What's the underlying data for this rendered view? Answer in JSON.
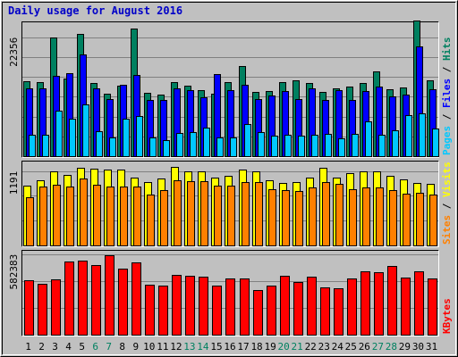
{
  "title": "Daily usage for August 2016",
  "chart_data": [
    {
      "type": "bar",
      "panel": "hits-files-pages",
      "categories": [
        "1",
        "2",
        "3",
        "4",
        "5",
        "6",
        "7",
        "8",
        "9",
        "10",
        "11",
        "12",
        "13",
        "14",
        "15",
        "16",
        "17",
        "18",
        "19",
        "20",
        "21",
        "22",
        "23",
        "24",
        "25",
        "26",
        "27",
        "28",
        "29",
        "30",
        "31"
      ],
      "weekend_days": [
        "6",
        "7",
        "13",
        "14",
        "20",
        "21",
        "27",
        "28"
      ],
      "y_tick_label": "22356",
      "y_tick_value": 22356,
      "ylim": [
        0,
        25000
      ],
      "legend": [
        {
          "name": "Pages",
          "color": "#00c8ff"
        },
        {
          "name": "Files",
          "color": "#0000ff"
        },
        {
          "name": "Hits",
          "color": "#008060"
        }
      ],
      "legend_separator": " / ",
      "series": [
        {
          "name": "Hits",
          "color": "#008060",
          "values": [
            14100,
            13900,
            22300,
            14600,
            23000,
            13700,
            11700,
            13300,
            24000,
            11900,
            11600,
            14000,
            13300,
            12400,
            11700,
            14000,
            17000,
            12100,
            12300,
            14000,
            14300,
            13800,
            12000,
            12800,
            13100,
            13700,
            15900,
            12600,
            12900,
            25500,
            14200
          ]
        },
        {
          "name": "Files",
          "color": "#0000ff",
          "values": [
            12800,
            12700,
            15100,
            15600,
            19100,
            12700,
            10800,
            13500,
            15300,
            10600,
            10600,
            12800,
            12400,
            11100,
            15400,
            12500,
            13500,
            10700,
            11400,
            12200,
            10800,
            12800,
            10600,
            12500,
            10600,
            12300,
            13100,
            11300,
            11600,
            20600,
            12600
          ]
        },
        {
          "name": "Pages",
          "color": "#00c8ff",
          "values": [
            4100,
            4100,
            8500,
            7000,
            9700,
            4700,
            3600,
            7000,
            7500,
            3500,
            3000,
            4300,
            4600,
            5300,
            3600,
            3500,
            6000,
            4500,
            3800,
            4000,
            3900,
            4000,
            4200,
            3300,
            4200,
            6500,
            4100,
            4900,
            7800,
            8000,
            5200
          ]
        }
      ]
    },
    {
      "type": "bar",
      "panel": "visits-sites",
      "categories": [
        "1",
        "2",
        "3",
        "4",
        "5",
        "6",
        "7",
        "8",
        "9",
        "10",
        "11",
        "12",
        "13",
        "14",
        "15",
        "16",
        "17",
        "18",
        "19",
        "20",
        "21",
        "22",
        "23",
        "24",
        "25",
        "26",
        "27",
        "28",
        "29",
        "30",
        "31"
      ],
      "y_tick_label": "1191",
      "y_tick_value": 1191,
      "ylim": [
        0,
        1330
      ],
      "legend": [
        {
          "name": "Sites",
          "color": "#ff8000"
        },
        {
          "name": "Visits",
          "color": "#ffff00"
        }
      ],
      "legend_separator": " / ",
      "series": [
        {
          "name": "Visits",
          "color": "#ffff00",
          "values": [
            960,
            1050,
            1180,
            1130,
            1250,
            1230,
            1210,
            1210,
            1090,
            1020,
            1070,
            1260,
            1180,
            1180,
            1080,
            1120,
            1210,
            1180,
            1040,
            1000,
            1010,
            1080,
            1250,
            1080,
            1160,
            1180,
            1180,
            1110,
            1060,
            1000,
            980
          ]
        },
        {
          "name": "Sites",
          "color": "#ff8000",
          "values": [
            770,
            950,
            970,
            950,
            1070,
            970,
            950,
            950,
            940,
            820,
            880,
            1040,
            1030,
            1030,
            960,
            960,
            1010,
            1010,
            900,
            880,
            870,
            930,
            1010,
            990,
            900,
            930,
            930,
            890,
            830,
            840,
            820
          ]
        }
      ]
    },
    {
      "type": "bar",
      "panel": "kbytes",
      "categories": [
        "1",
        "2",
        "3",
        "4",
        "5",
        "6",
        "7",
        "8",
        "9",
        "10",
        "11",
        "12",
        "13",
        "14",
        "15",
        "16",
        "17",
        "18",
        "19",
        "20",
        "21",
        "22",
        "23",
        "24",
        "25",
        "26",
        "27",
        "28",
        "29",
        "30",
        "31"
      ],
      "y_tick_label": "582383",
      "y_tick_value": 582383,
      "ylim": [
        0,
        600000
      ],
      "legend": [
        {
          "name": "KBytes",
          "color": "#ff0000"
        }
      ],
      "series": [
        {
          "name": "KBytes",
          "color": "#ff0000",
          "values": [
            392000,
            369000,
            398000,
            528000,
            537000,
            506000,
            571000,
            480000,
            523000,
            363000,
            353000,
            430000,
            425000,
            418000,
            353000,
            404000,
            404000,
            322000,
            353000,
            423000,
            380000,
            422000,
            341000,
            333000,
            404000,
            458000,
            452000,
            500000,
            410000,
            461000,
            406000
          ]
        }
      ]
    }
  ]
}
